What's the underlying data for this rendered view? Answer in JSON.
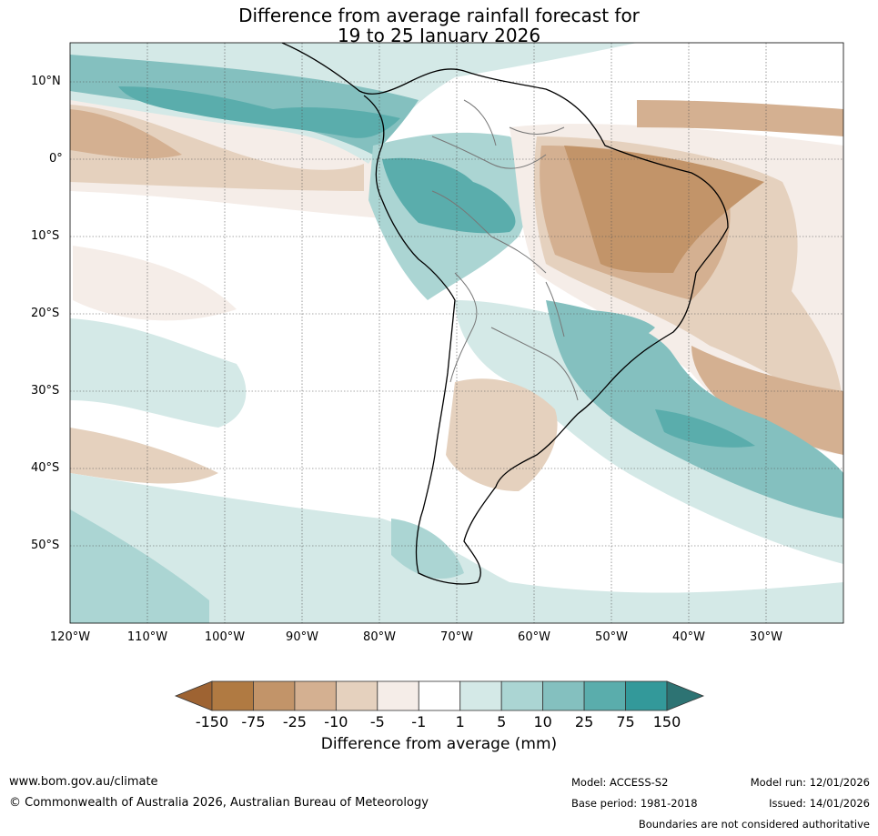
{
  "title": {
    "line1": "Difference from average rainfall forecast for",
    "line2": "19 to 25 January 2026"
  },
  "map": {
    "region": "South America",
    "lat_labels": [
      "10°N",
      "0°",
      "10°S",
      "20°S",
      "30°S",
      "40°S",
      "50°S"
    ],
    "lon_labels": [
      "120°W",
      "110°W",
      "100°W",
      "90°W",
      "80°W",
      "70°W",
      "60°W",
      "50°W",
      "40°W",
      "30°W"
    ],
    "lat_range": [
      -60,
      15
    ],
    "lon_range": [
      -120,
      -20
    ]
  },
  "legend": {
    "title": "Difference from average (mm)",
    "tick_labels": [
      "-150",
      "-75",
      "-25",
      "-10",
      "-5",
      "-1",
      "1",
      "5",
      "10",
      "25",
      "75",
      "150"
    ],
    "colors": [
      "#9e6332",
      "#b07a42",
      "#c29469",
      "#d4b091",
      "#e5d1be",
      "#f5ede8",
      "#ffffff",
      "#d4e9e7",
      "#abd5d3",
      "#84c0bf",
      "#5aadac",
      "#33999a",
      "#2d7373"
    ]
  },
  "footer": {
    "website": "www.bom.gov.au/climate",
    "copyright": "© Commonwealth of Australia 2026, Australian Bureau of Meteorology",
    "model": "Model: ACCESS-S2",
    "base_period": "Base period: 1981-2018",
    "model_run": "Model run: 12/01/2026",
    "issued": "Issued: 14/01/2026",
    "disclaimer": "Boundaries are not considered authoritative"
  }
}
